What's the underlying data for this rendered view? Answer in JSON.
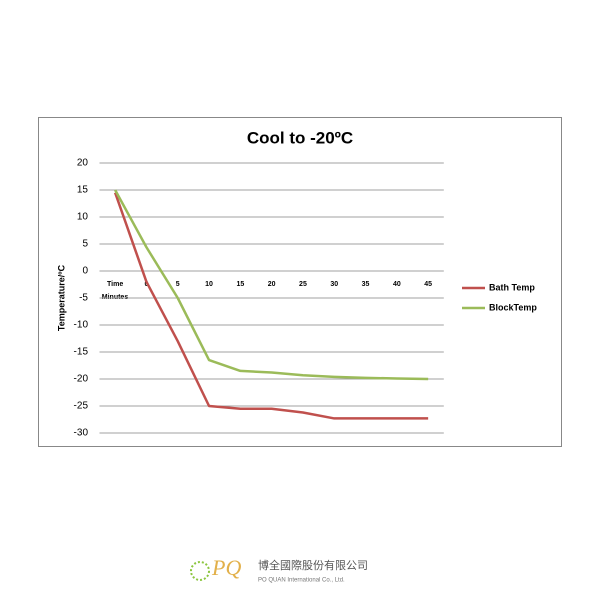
{
  "chart_data": {
    "type": "line",
    "title": "Cool to -20ºC",
    "ylabel": "Temperature/ºC",
    "xlabel": "Minutes",
    "categories": [
      "Time",
      "0",
      "5",
      "10",
      "15",
      "20",
      "25",
      "30",
      "35",
      "40",
      "45"
    ],
    "series": [
      {
        "name": "Bath Temp",
        "color": "#c0504d",
        "values": [
          14.5,
          -2,
          -13,
          -25,
          -25.5,
          -25.5,
          -26.2,
          -27.3,
          -27.3,
          -27.3,
          -27.3
        ]
      },
      {
        "name": "BlockTemp",
        "color": "#9bbb59",
        "values": [
          15,
          4.4,
          -5,
          -16.5,
          -18.5,
          -18.8,
          -19.3,
          -19.6,
          -19.8,
          -19.9,
          -20
        ]
      }
    ],
    "ylim": [
      -30,
      20
    ],
    "yticks": [
      -30,
      -25,
      -20,
      -15,
      -10,
      -5,
      0,
      5,
      10,
      15,
      20
    ],
    "grid": true,
    "legend": "right"
  },
  "logo": {
    "mark": "PQ",
    "name_zh": "博全國際股份有限公司",
    "name_en": "PO QUAN International Co., Ltd."
  }
}
